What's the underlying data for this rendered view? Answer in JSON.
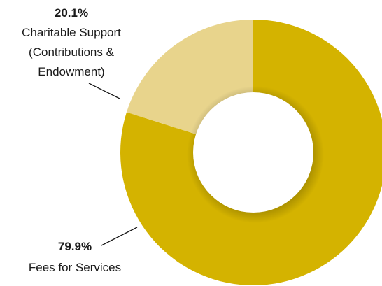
{
  "chart_data": {
    "type": "pie",
    "donut": true,
    "title": "",
    "slices": [
      {
        "label_lines": [
          "Fees for Services"
        ],
        "value": 79.9,
        "value_label": "79.9%",
        "color": "#d4b300"
      },
      {
        "label_lines": [
          "Charitable Support",
          "(Contributions &",
          "Endowment)"
        ],
        "value": 20.1,
        "value_label": "20.1%",
        "color": "#e8d48c"
      }
    ],
    "start": "12 o'clock",
    "direction": "clockwise",
    "legend": "none",
    "center_color": "#ffffff"
  }
}
